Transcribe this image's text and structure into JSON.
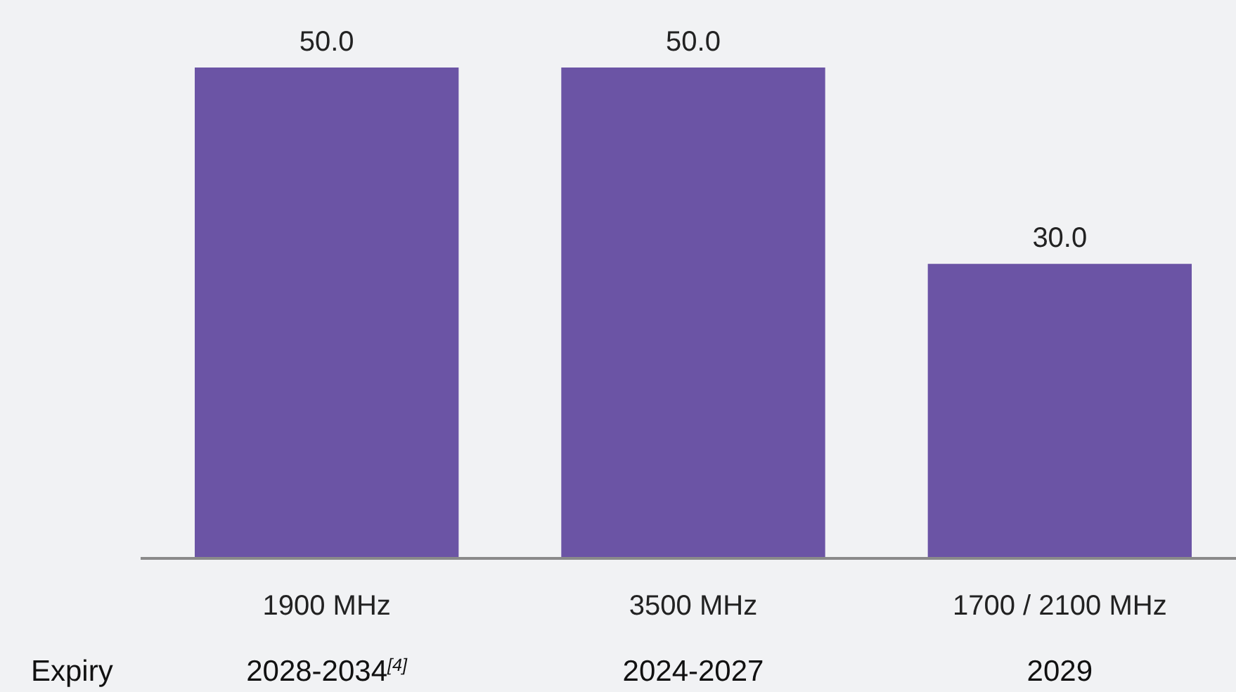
{
  "chart_data": {
    "type": "bar",
    "categories": [
      "1900 MHz",
      "3500 MHz",
      "1700 / 2100 MHz"
    ],
    "values": [
      50.0,
      50.0,
      30.0
    ],
    "color": "#6b54a5",
    "value_labels": [
      "50.0",
      "50.0",
      "30.0"
    ],
    "annotations": [
      "Expiry",
      "2028-2034$^{[4]}$",
      "2024-2027",
      "2029"
    ]
  }
}
